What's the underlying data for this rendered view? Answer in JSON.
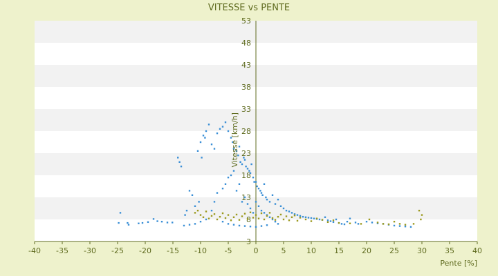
{
  "chart_data": {
    "type": "scatter",
    "title": "VITESSE vs PENTE",
    "xlabel": "Pente [%]",
    "ylabel": "Vitesse [km/h]",
    "xlim": [
      -40,
      40
    ],
    "ylim": [
      3,
      53
    ],
    "x_ticks": [
      "-40",
      "-35",
      "-30",
      "-25",
      "-20",
      "-15",
      "-10",
      "-5",
      "0",
      "5",
      "10",
      "15",
      "20",
      "25",
      "30",
      "35",
      "40"
    ],
    "y_ticks": [
      "3",
      "8",
      "13",
      "18",
      "23",
      "28",
      "33",
      "38",
      "43",
      "48",
      "53"
    ],
    "grid": "horizontal alternating bands",
    "colors": {
      "background": "#EEF2CC",
      "band_light": "#FFFFFF",
      "band_dark": "#F2F2F2",
      "axis": "#5F6B1F",
      "series_blue": "#3A8FD6",
      "series_olive": "#9C9A1E"
    },
    "series": [
      {
        "color": "#3A8FD6",
        "points": [
          [
            -24.5,
            9.5
          ],
          [
            -24.8,
            7.2
          ],
          [
            -23.2,
            7.2
          ],
          [
            -23.0,
            6.8
          ],
          [
            -21.2,
            7.1
          ],
          [
            -20.5,
            7.2
          ],
          [
            -19.5,
            7.4
          ],
          [
            -18.5,
            8.1
          ],
          [
            -17.8,
            7.6
          ],
          [
            -17.0,
            7.5
          ],
          [
            -16.0,
            7.3
          ],
          [
            -15.1,
            7.3
          ],
          [
            -14.1,
            22.0
          ],
          [
            -13.8,
            21.0
          ],
          [
            -13.5,
            20.0
          ],
          [
            -12.5,
            10.0
          ],
          [
            -12.8,
            9.0
          ],
          [
            -12.0,
            14.5
          ],
          [
            -11.5,
            13.5
          ],
          [
            -11.0,
            11.0
          ],
          [
            -10.5,
            23.5
          ],
          [
            -10.0,
            25.5
          ],
          [
            -10.3,
            12.0
          ],
          [
            -9.8,
            22.0
          ],
          [
            -9.5,
            27.0
          ],
          [
            -9.2,
            26.5
          ],
          [
            -9.0,
            28.0
          ],
          [
            -8.5,
            29.5
          ],
          [
            -8.0,
            25.0
          ],
          [
            -7.5,
            24.0
          ],
          [
            -7.0,
            27.5
          ],
          [
            -6.5,
            28.5
          ],
          [
            -6.0,
            29.0
          ],
          [
            -5.5,
            30.0
          ],
          [
            -5.0,
            28.0
          ],
          [
            -4.5,
            26.5
          ],
          [
            -4.2,
            25.5
          ],
          [
            -4.0,
            24.0
          ],
          [
            -3.5,
            23.5
          ],
          [
            -3.2,
            22.5
          ],
          [
            -3.0,
            24.5
          ],
          [
            -2.8,
            21.0
          ],
          [
            -2.5,
            20.5
          ],
          [
            -2.2,
            22.0
          ],
          [
            -2.0,
            21.5
          ],
          [
            -1.8,
            20.0
          ],
          [
            -1.5,
            19.5
          ],
          [
            -1.2,
            19.0
          ],
          [
            -1.0,
            18.5
          ],
          [
            -0.8,
            20.5
          ],
          [
            -0.5,
            17.5
          ],
          [
            -0.3,
            16.5
          ],
          [
            0.0,
            16.5
          ],
          [
            0.2,
            15.5
          ],
          [
            0.5,
            15.0
          ],
          [
            0.8,
            14.5
          ],
          [
            1.0,
            14.0
          ],
          [
            1.2,
            13.5
          ],
          [
            1.5,
            16.0
          ],
          [
            1.8,
            13.0
          ],
          [
            2.0,
            12.5
          ],
          [
            2.5,
            12.0
          ],
          [
            3.0,
            13.5
          ],
          [
            3.5,
            11.5
          ],
          [
            4.0,
            12.5
          ],
          [
            4.5,
            11.0
          ],
          [
            5.0,
            10.5
          ],
          [
            5.5,
            10.0
          ],
          [
            6.0,
            9.8
          ],
          [
            6.5,
            9.5
          ],
          [
            7.0,
            9.2
          ],
          [
            7.5,
            9.0
          ],
          [
            8.0,
            8.8
          ],
          [
            8.5,
            8.6
          ],
          [
            9.0,
            8.5
          ],
          [
            9.5,
            8.4
          ],
          [
            10.0,
            8.3
          ],
          [
            10.5,
            8.2
          ],
          [
            11.0,
            8.1
          ],
          [
            11.5,
            8.0
          ],
          [
            12.0,
            7.9
          ],
          [
            12.5,
            8.5
          ],
          [
            13.0,
            7.8
          ],
          [
            13.5,
            7.6
          ],
          [
            14.0,
            7.4
          ],
          [
            14.5,
            8.0
          ],
          [
            15.0,
            7.2
          ],
          [
            15.5,
            7.0
          ],
          [
            16.0,
            6.9
          ],
          [
            16.5,
            7.5
          ],
          [
            17.0,
            8.2
          ],
          [
            18.0,
            7.3
          ],
          [
            18.5,
            7.0
          ],
          [
            20.0,
            7.5
          ],
          [
            21.0,
            7.3
          ],
          [
            22.0,
            7.1
          ],
          [
            23.0,
            7.0
          ],
          [
            24.0,
            6.8
          ],
          [
            25.0,
            6.6
          ],
          [
            26.0,
            6.5
          ],
          [
            27.0,
            6.4
          ],
          [
            28.0,
            6.3
          ],
          [
            -8.0,
            10.0
          ],
          [
            -7.5,
            12.0
          ],
          [
            -7.0,
            14.0
          ],
          [
            -6.0,
            15.0
          ],
          [
            -5.5,
            16.0
          ],
          [
            -5.0,
            17.5
          ],
          [
            -4.5,
            18.0
          ],
          [
            -4.0,
            19.0
          ],
          [
            -3.5,
            14.5
          ],
          [
            -3.0,
            16.0
          ],
          [
            -2.5,
            12.0
          ],
          [
            -2.0,
            13.0
          ],
          [
            -1.5,
            11.5
          ],
          [
            -1.0,
            10.5
          ],
          [
            -0.5,
            9.5
          ],
          [
            0.0,
            12.0
          ],
          [
            0.5,
            11.0
          ],
          [
            1.0,
            10.0
          ],
          [
            1.5,
            9.5
          ],
          [
            2.0,
            9.0
          ],
          [
            2.5,
            8.5
          ],
          [
            3.0,
            8.0
          ],
          [
            3.5,
            7.5
          ],
          [
            4.0,
            7.0
          ],
          [
            -6.0,
            7.5
          ],
          [
            -5.0,
            7.0
          ],
          [
            -4.0,
            6.8
          ],
          [
            -3.0,
            6.6
          ],
          [
            -2.0,
            6.5
          ],
          [
            -1.0,
            6.4
          ],
          [
            0.0,
            6.3
          ],
          [
            1.0,
            6.5
          ],
          [
            2.0,
            6.7
          ],
          [
            -9.0,
            8.0
          ],
          [
            -10.0,
            7.5
          ],
          [
            -11.0,
            7.0
          ],
          [
            -12.0,
            6.8
          ],
          [
            -13.0,
            6.6
          ]
        ]
      },
      {
        "color": "#9C9A1E",
        "points": [
          [
            -11.0,
            9.5
          ],
          [
            -10.5,
            10.0
          ],
          [
            -10.0,
            9.0
          ],
          [
            -9.5,
            8.5
          ],
          [
            -9.0,
            9.8
          ],
          [
            -8.5,
            8.2
          ],
          [
            -8.0,
            8.8
          ],
          [
            -7.5,
            9.2
          ],
          [
            -7.0,
            8.0
          ],
          [
            -6.5,
            8.6
          ],
          [
            -6.0,
            9.4
          ],
          [
            -5.5,
            8.3
          ],
          [
            -5.0,
            9.0
          ],
          [
            -4.5,
            7.8
          ],
          [
            -4.0,
            8.5
          ],
          [
            -3.5,
            9.1
          ],
          [
            -3.0,
            7.9
          ],
          [
            -2.5,
            8.7
          ],
          [
            -2.0,
            9.3
          ],
          [
            -1.5,
            8.1
          ],
          [
            -1.0,
            9.6
          ],
          [
            -0.5,
            8.4
          ],
          [
            0.0,
            9.0
          ],
          [
            0.5,
            8.2
          ],
          [
            1.0,
            9.4
          ],
          [
            1.5,
            8.0
          ],
          [
            2.0,
            8.8
          ],
          [
            2.5,
            9.5
          ],
          [
            3.0,
            8.3
          ],
          [
            3.5,
            7.9
          ],
          [
            4.0,
            8.6
          ],
          [
            4.5,
            9.1
          ],
          [
            5.0,
            8.0
          ],
          [
            5.5,
            8.7
          ],
          [
            6.0,
            7.8
          ],
          [
            6.5,
            8.5
          ],
          [
            7.0,
            8.9
          ],
          [
            7.5,
            7.7
          ],
          [
            8.0,
            8.4
          ],
          [
            9.0,
            8.0
          ],
          [
            10.0,
            7.6
          ],
          [
            11.0,
            8.2
          ],
          [
            12.0,
            7.9
          ],
          [
            13.0,
            7.4
          ],
          [
            14.0,
            7.8
          ],
          [
            15.0,
            7.2
          ],
          [
            17.0,
            7.1
          ],
          [
            19.0,
            7.0
          ],
          [
            20.5,
            8.0
          ],
          [
            22.0,
            7.3
          ],
          [
            23.0,
            7.0
          ],
          [
            24.0,
            6.9
          ],
          [
            25.0,
            7.5
          ],
          [
            26.0,
            7.0
          ],
          [
            27.0,
            6.8
          ],
          [
            28.5,
            7.0
          ],
          [
            29.5,
            10.0
          ],
          [
            30.0,
            9.0
          ],
          [
            29.8,
            8.0
          ]
        ]
      }
    ]
  }
}
